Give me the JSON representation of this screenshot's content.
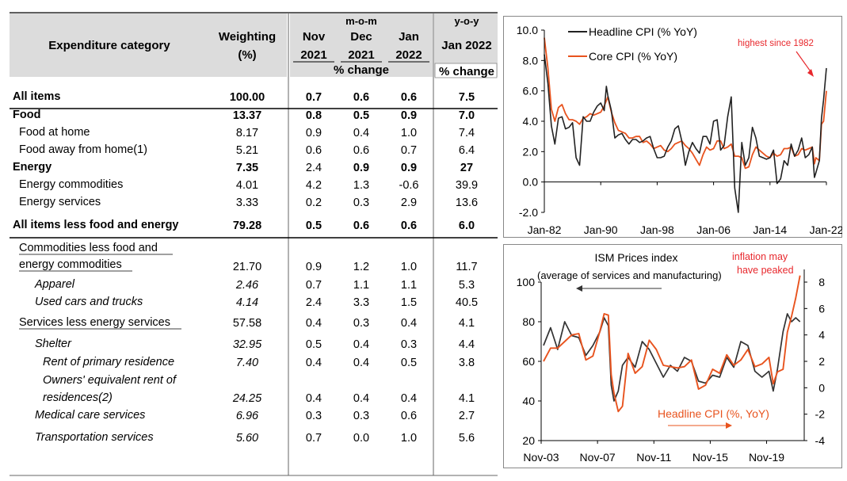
{
  "table": {
    "header": {
      "category": "Expenditure category",
      "weighting": "Weighting",
      "weighting_unit": "(%)",
      "mom": "m-o-m",
      "yoy": "y-o-y",
      "nov": "Nov",
      "dec": "Dec",
      "jan": "Jan",
      "y2021a": "2021",
      "y2021b": "2021",
      "y2022": "2022",
      "jan2022": "Jan 2022",
      "pct_change": "% change",
      "pct_change2": "% change"
    },
    "rows": [
      {
        "cat": "All items",
        "w": "100.00",
        "nov": "0.7",
        "dec": "0.6",
        "jan": "0.6",
        "yoy": "7.5"
      },
      {
        "cat": "Food",
        "w": "13.37",
        "nov": "0.8",
        "dec": "0.5",
        "jan": "0.9",
        "yoy": "7.0"
      },
      {
        "cat": "Food at home",
        "w": "8.17",
        "nov": "0.9",
        "dec": "0.4",
        "jan": "1.0",
        "yoy": "7.4"
      },
      {
        "cat": "Food away from home(1)",
        "w": "5.21",
        "nov": "0.6",
        "dec": "0.6",
        "jan": "0.7",
        "yoy": "6.4"
      },
      {
        "cat": "Energy",
        "w": "7.35",
        "nov": "2.4",
        "dec": "0.9",
        "jan": "0.9",
        "yoy": "27"
      },
      {
        "cat": "Energy commodities",
        "w": "4.01",
        "nov": "4.2",
        "dec": "1.3",
        "jan": "-0.6",
        "yoy": "39.9"
      },
      {
        "cat": "Energy services",
        "w": "3.33",
        "nov": "0.2",
        "dec": "0.3",
        "jan": "2.9",
        "yoy": "13.6"
      },
      {
        "cat": "All items less food and energy",
        "w": "79.28",
        "nov": "0.5",
        "dec": "0.6",
        "jan": "0.6",
        "yoy": "6.0"
      },
      {
        "cat": "Commodities less food and",
        "cat2": "energy commodities",
        "w": "21.70",
        "nov": "0.9",
        "dec": "1.2",
        "jan": "1.0",
        "yoy": "11.7"
      },
      {
        "cat": "Apparel",
        "w": "2.46",
        "nov": "0.7",
        "dec": "1.1",
        "jan": "1.1",
        "yoy": "5.3"
      },
      {
        "cat": "Used cars and trucks",
        "w": "4.14",
        "nov": "2.4",
        "dec": "3.3",
        "jan": "1.5",
        "yoy": "40.5"
      },
      {
        "cat": "Services less energy services",
        "w": "57.58",
        "nov": "0.4",
        "dec": "0.3",
        "jan": "0.4",
        "yoy": "4.1"
      },
      {
        "cat": "Shelter",
        "w": "32.95",
        "nov": "0.5",
        "dec": "0.4",
        "jan": "0.3",
        "yoy": "4.4"
      },
      {
        "cat": "Rent of primary residence",
        "w": "7.40",
        "nov": "0.4",
        "dec": "0.4",
        "jan": "0.5",
        "yoy": "3.8"
      },
      {
        "cat": "Owners' equivalent rent of",
        "cat2": "residences(2)",
        "w": "24.25",
        "nov": "0.4",
        "dec": "0.4",
        "jan": "0.4",
        "yoy": "4.1"
      },
      {
        "cat": "Medical care services",
        "w": "6.96",
        "nov": "0.3",
        "dec": "0.3",
        "jan": "0.6",
        "yoy": "2.7"
      },
      {
        "cat": "Transportation services",
        "w": "5.60",
        "nov": "0.7",
        "dec": "0.0",
        "jan": "1.0",
        "yoy": "5.6"
      }
    ]
  },
  "chart_data": [
    {
      "type": "line",
      "title": "",
      "ylim": [
        -2,
        10
      ],
      "yticks": [
        "10.0",
        "8.0",
        "6.0",
        "4.0",
        "2.0",
        "0.0",
        "-2.0"
      ],
      "xticks": [
        "Jan-82",
        "Jan-90",
        "Jan-98",
        "Jan-06",
        "Jan-14",
        "Jan-22"
      ],
      "annotation": "highest since 1982",
      "annotation_color": "#e8282d",
      "series": [
        {
          "name": "Headline CPI (% YoY)",
          "color": "#222222",
          "x": [
            1982,
            1982.5,
            1983,
            1983.5,
            1984,
            1984.5,
            1985,
            1985.5,
            1986,
            1986.5,
            1987,
            1987.5,
            1988,
            1988.5,
            1989,
            1989.5,
            1990,
            1990.5,
            1990.8,
            1991,
            1991.5,
            1992,
            1992.5,
            1993,
            1993.5,
            1994,
            1994.5,
            1995,
            1995.5,
            1996,
            1996.5,
            1997,
            1997.5,
            1998,
            1998.5,
            1999,
            1999.5,
            2000,
            2000.5,
            2001,
            2001.5,
            2002,
            2002.5,
            2003,
            2003.5,
            2004,
            2004.5,
            2005,
            2005.5,
            2006,
            2006.5,
            2007,
            2007.5,
            2008,
            2008.5,
            2009,
            2009.5,
            2010,
            2010.5,
            2011,
            2011.5,
            2012,
            2012.5,
            2013,
            2013.5,
            2014,
            2014.5,
            2015,
            2015.5,
            2016,
            2016.5,
            2017,
            2017.5,
            2018,
            2018.5,
            2019,
            2019.5,
            2020,
            2020.3,
            2020.5,
            2021,
            2021.3,
            2021.6,
            2022
          ],
          "values": [
            8.4,
            6.5,
            3.7,
            2.5,
            4.2,
            4.3,
            3.5,
            3.6,
            3.9,
            1.6,
            1.1,
            4.3,
            4.0,
            4.0,
            4.6,
            5.0,
            5.2,
            4.7,
            6.3,
            5.7,
            4.7,
            2.9,
            3.1,
            3.2,
            2.8,
            2.5,
            2.8,
            2.8,
            2.6,
            2.7,
            2.9,
            3.0,
            2.2,
            1.6,
            1.6,
            1.7,
            2.3,
            2.7,
            3.5,
            3.7,
            2.7,
            1.1,
            2.0,
            2.6,
            2.2,
            1.9,
            3.0,
            3.0,
            2.5,
            4.0,
            4.1,
            2.1,
            2.4,
            4.3,
            5.6,
            -0.4,
            -2.0,
            2.6,
            1.1,
            1.6,
            3.6,
            2.9,
            1.7,
            1.6,
            1.5,
            1.6,
            2.1,
            -0.1,
            0.2,
            1.4,
            1.1,
            2.5,
            1.7,
            2.1,
            2.9,
            1.6,
            1.8,
            2.3,
            0.3,
            0.6,
            1.4,
            4.2,
            5.4,
            7.5
          ]
        },
        {
          "name": "Core CPI (% YoY)",
          "color": "#e8531e",
          "x": [
            1982,
            1982.5,
            1983,
            1983.5,
            1984,
            1984.5,
            1985,
            1985.5,
            1986,
            1986.5,
            1987,
            1987.5,
            1988,
            1988.5,
            1989,
            1989.5,
            1990,
            1990.5,
            1991,
            1991.5,
            1992,
            1992.5,
            1993,
            1993.5,
            1994,
            1994.5,
            1995,
            1995.5,
            1996,
            1996.5,
            1997,
            1997.5,
            1998,
            1998.5,
            1999,
            1999.5,
            2000,
            2000.5,
            2001,
            2001.5,
            2002,
            2002.5,
            2003,
            2003.5,
            2004,
            2004.5,
            2005,
            2005.5,
            2006,
            2006.5,
            2007,
            2007.5,
            2008,
            2008.5,
            2009,
            2009.5,
            2010,
            2010.5,
            2011,
            2011.5,
            2012,
            2012.5,
            2013,
            2013.5,
            2014,
            2014.5,
            2015,
            2015.5,
            2016,
            2016.5,
            2017,
            2017.5,
            2018,
            2018.5,
            2019,
            2019.5,
            2020,
            2020.3,
            2020.5,
            2021,
            2021.3,
            2021.6,
            2022
          ],
          "values": [
            9.5,
            7.5,
            4.8,
            4.0,
            4.9,
            5.1,
            4.5,
            4.1,
            4.1,
            4.0,
            3.8,
            4.2,
            4.3,
            4.5,
            4.4,
            4.5,
            4.6,
            5.0,
            5.6,
            4.6,
            3.9,
            3.4,
            3.3,
            3.2,
            2.9,
            2.9,
            3.0,
            3.0,
            2.6,
            2.7,
            2.5,
            2.2,
            2.3,
            2.4,
            2.1,
            2.0,
            2.2,
            2.5,
            2.6,
            2.7,
            2.4,
            2.2,
            1.9,
            1.5,
            1.1,
            1.8,
            2.3,
            2.1,
            2.2,
            2.7,
            2.7,
            2.2,
            2.3,
            2.5,
            1.7,
            1.7,
            1.6,
            0.9,
            1.0,
            1.8,
            2.3,
            2.1,
            1.9,
            1.7,
            1.6,
            1.9,
            1.7,
            1.8,
            2.2,
            2.2,
            2.3,
            1.7,
            1.8,
            2.2,
            2.1,
            2.2,
            2.3,
            1.2,
            1.6,
            1.4,
            3.8,
            4.0,
            6.0
          ]
        }
      ]
    },
    {
      "type": "line",
      "title": "ISM Prices index",
      "subtitle": "(average of services and manufacturing)",
      "ylim_left": [
        20,
        100
      ],
      "ylim_right": [
        -4,
        8
      ],
      "yticks_left": [
        "100",
        "80",
        "60",
        "40",
        "20"
      ],
      "yticks_right": [
        "8",
        "6",
        "4",
        "2",
        "0",
        "-2",
        "-4"
      ],
      "xticks": [
        "Nov-03",
        "Nov-07",
        "Nov-11",
        "Nov-15",
        "Nov-19"
      ],
      "annotation": "inflation may have peaked",
      "annotation_l1": "inflation may",
      "annotation_l2": "have peaked",
      "annotation_color": "#e8282d",
      "legend_right": "Headline CPI (%, YoY)",
      "series": [
        {
          "name": "ISM Prices index",
          "axis": "left",
          "color": "#333333",
          "x": [
            2004,
            2004.5,
            2005,
            2005.5,
            2006,
            2006.5,
            2007,
            2007.5,
            2008,
            2008.3,
            2008.6,
            2008.8,
            2009,
            2009.3,
            2009.6,
            2010,
            2010.5,
            2011,
            2011.5,
            2012,
            2012.5,
            2013,
            2013.5,
            2014,
            2014.5,
            2015,
            2015.5,
            2016,
            2016.5,
            2017,
            2017.5,
            2018,
            2018.5,
            2019,
            2019.5,
            2020,
            2020.3,
            2020.6,
            2021,
            2021.3,
            2021.6,
            2021.9,
            2022.2
          ],
          "values": [
            68,
            77,
            66,
            80,
            73,
            72,
            63,
            68,
            75,
            82,
            78,
            48,
            40,
            45,
            58,
            62,
            57,
            70,
            66,
            59,
            52,
            58,
            55,
            62,
            60,
            50,
            49,
            53,
            52,
            62,
            57,
            70,
            68,
            55,
            52,
            55,
            45,
            56,
            75,
            84,
            80,
            82,
            80
          ]
        },
        {
          "name": "Headline CPI (%, YoY)",
          "axis": "right",
          "color": "#e8531e",
          "x": [
            2004,
            2004.5,
            2005,
            2005.5,
            2006,
            2006.5,
            2007,
            2007.5,
            2008,
            2008.3,
            2008.6,
            2008.8,
            2009,
            2009.3,
            2009.6,
            2010,
            2010.5,
            2011,
            2011.5,
            2012,
            2012.5,
            2013,
            2013.5,
            2014,
            2014.5,
            2015,
            2015.5,
            2016,
            2016.5,
            2017,
            2017.5,
            2018,
            2018.5,
            2019,
            2019.5,
            2020,
            2020.3,
            2020.6,
            2021,
            2021.3,
            2021.6,
            2021.9,
            2022.2
          ],
          "values": [
            2.0,
            3.0,
            3.0,
            3.5,
            4.0,
            4.1,
            2.1,
            2.4,
            4.3,
            5.6,
            5.5,
            1.0,
            -0.4,
            -1.8,
            -1.4,
            2.6,
            1.1,
            1.6,
            3.6,
            2.9,
            1.7,
            1.6,
            1.5,
            1.6,
            2.1,
            -0.1,
            0.2,
            1.4,
            1.1,
            2.5,
            1.7,
            2.1,
            2.9,
            1.6,
            1.8,
            2.3,
            0.3,
            1.2,
            1.4,
            4.2,
            5.4,
            6.8,
            8.5
          ]
        }
      ]
    }
  ]
}
